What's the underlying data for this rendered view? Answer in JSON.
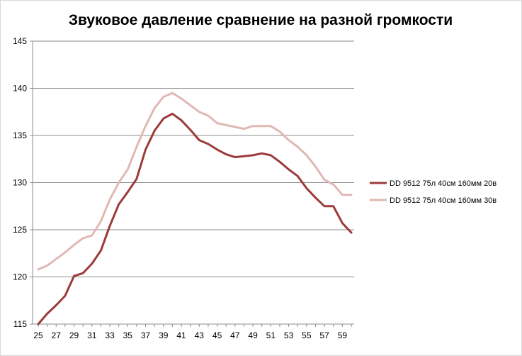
{
  "chart_data": {
    "type": "line",
    "title": "Звуковое давление  сравнение на разной громкости",
    "xlabel": "",
    "ylabel": "",
    "x_tick_labels": [
      "25",
      "27",
      "29",
      "31",
      "33",
      "35",
      "37",
      "39",
      "41",
      "43",
      "45",
      "47",
      "49",
      "51",
      "53",
      "55",
      "57",
      "59"
    ],
    "y_tick_labels": [
      "115",
      "120",
      "125",
      "130",
      "135",
      "140",
      "145"
    ],
    "ylim": [
      115,
      145
    ],
    "x": [
      25,
      26,
      27,
      28,
      29,
      30,
      31,
      32,
      33,
      34,
      35,
      36,
      37,
      38,
      39,
      40,
      41,
      42,
      43,
      44,
      45,
      46,
      47,
      48,
      49,
      50,
      51,
      52,
      53,
      54,
      55,
      56,
      57,
      58,
      59,
      60
    ],
    "grid": "horizontal",
    "legend_position": "right",
    "series": [
      {
        "name": "DD 9512 75л 40см  160мм  20в",
        "color": "#9b3b3b",
        "values": [
          115.0,
          116.1,
          117.0,
          118.0,
          120.1,
          120.4,
          121.4,
          122.8,
          125.4,
          127.7,
          129.0,
          130.4,
          133.5,
          135.5,
          136.8,
          137.3,
          136.6,
          135.6,
          134.5,
          134.1,
          133.5,
          133.0,
          132.7,
          132.8,
          132.9,
          133.1,
          132.9,
          132.2,
          131.4,
          130.7,
          129.4,
          128.4,
          127.5,
          127.5,
          125.7,
          124.7
        ]
      },
      {
        "name": "DD 9512 75л 40см  160мм 30в",
        "color": "#e0b8b4",
        "values": [
          120.8,
          121.2,
          121.9,
          122.6,
          123.4,
          124.1,
          124.4,
          125.9,
          128.2,
          130.0,
          131.4,
          133.8,
          136.0,
          137.9,
          139.1,
          139.5,
          138.9,
          138.2,
          137.5,
          137.1,
          136.3,
          136.1,
          135.9,
          135.7,
          136.0,
          136.0,
          136.0,
          135.4,
          134.5,
          133.8,
          132.9,
          131.7,
          130.3,
          129.8,
          128.7,
          128.7
        ]
      }
    ]
  }
}
